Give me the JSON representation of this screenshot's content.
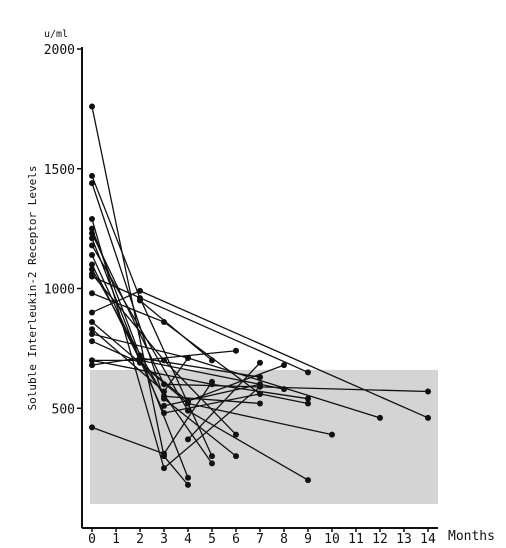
{
  "chart_data": {
    "type": "line",
    "title": "",
    "xlabel": "Months",
    "ylabel": "Soluble Interleukin-2 Receptor Levels",
    "y_unit": "u/ml",
    "xlim": [
      0,
      14
    ],
    "ylim": [
      0,
      2000
    ],
    "x_ticks": [
      0,
      1,
      2,
      3,
      4,
      5,
      6,
      7,
      8,
      9,
      10,
      11,
      12,
      13,
      14
    ],
    "y_ticks": [
      500,
      1000,
      1500,
      2000
    ],
    "grid": false,
    "legend": "none",
    "normal_range": [
      100,
      660
    ],
    "colors": {
      "line": "#111111",
      "band": "#d4d4d4"
    },
    "series": [
      {
        "x": [
          0,
          3,
          4
        ],
        "y": [
          1760,
          300,
          180
        ]
      },
      {
        "x": [
          0,
          2,
          5
        ],
        "y": [
          1470,
          960,
          300
        ]
      },
      {
        "x": [
          0,
          3,
          6
        ],
        "y": [
          1440,
          540,
          300
        ]
      },
      {
        "x": [
          0,
          3,
          7
        ],
        "y": [
          1290,
          250,
          590
        ]
      },
      {
        "x": [
          0,
          2,
          4
        ],
        "y": [
          1250,
          720,
          210
        ]
      },
      {
        "x": [
          0,
          3,
          14
        ],
        "y": [
          1230,
          600,
          570
        ]
      },
      {
        "x": [
          0,
          2,
          5
        ],
        "y": [
          1210,
          700,
          270
        ]
      },
      {
        "x": [
          0,
          4,
          9
        ],
        "y": [
          1180,
          490,
          200
        ]
      },
      {
        "x": [
          0,
          3,
          7,
          9
        ],
        "y": [
          1140,
          480,
          560,
          520
        ]
      },
      {
        "x": [
          0,
          2,
          8
        ],
        "y": [
          1100,
          700,
          580
        ]
      },
      {
        "x": [
          0,
          3,
          7
        ],
        "y": [
          1080,
          550,
          520
        ]
      },
      {
        "x": [
          0,
          3,
          6
        ],
        "y": [
          1060,
          700,
          390
        ]
      },
      {
        "x": [
          0,
          9
        ],
        "y": [
          1050,
          650
        ]
      },
      {
        "x": [
          0,
          3,
          7
        ],
        "y": [
          980,
          860,
          560
        ]
      },
      {
        "x": [
          0,
          2,
          14
        ],
        "y": [
          900,
          990,
          460
        ]
      },
      {
        "x": [
          0,
          4,
          10
        ],
        "y": [
          860,
          520,
          390
        ]
      },
      {
        "x": [
          0,
          3,
          4
        ],
        "y": [
          830,
          570,
          710
        ]
      },
      {
        "x": [
          0,
          4,
          12
        ],
        "y": [
          810,
          710,
          460
        ]
      },
      {
        "x": [
          0,
          2,
          4,
          8
        ],
        "y": [
          780,
          690,
          530,
          680
        ]
      },
      {
        "x": [
          0,
          2,
          6
        ],
        "y": [
          700,
          700,
          740
        ]
      },
      {
        "x": [
          0,
          2,
          7
        ],
        "y": [
          680,
          710,
          630
        ]
      },
      {
        "x": [
          0,
          3,
          5
        ],
        "y": [
          420,
          310,
          610
        ]
      },
      {
        "x": [
          0,
          5,
          9
        ],
        "y": [
          700,
          600,
          540
        ]
      },
      {
        "x": [
          4,
          7
        ],
        "y": [
          370,
          690
        ]
      },
      {
        "x": [
          3,
          7
        ],
        "y": [
          510,
          600
        ]
      },
      {
        "x": [
          2,
          5
        ],
        "y": [
          950,
          700
        ]
      }
    ]
  }
}
